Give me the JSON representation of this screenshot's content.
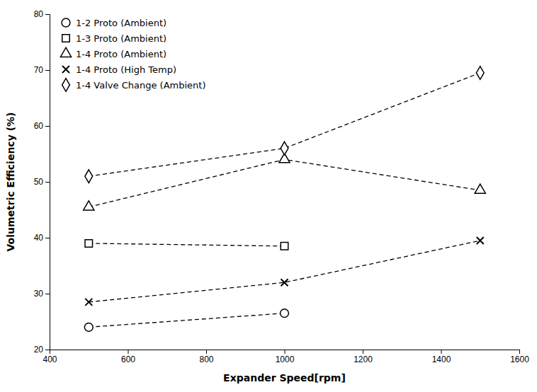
{
  "chart_data": {
    "type": "line",
    "xlabel": "Expander Speed[rpm]",
    "ylabel": "Volumetric Efficiency (%)",
    "color": "black",
    "line_style": "dashed",
    "legend": "upper left",
    "grid": false,
    "xlim": [
      400,
      1600
    ],
    "ylim": [
      20,
      80
    ],
    "xticks": [
      400,
      600,
      800,
      1000,
      1200,
      1400,
      1600
    ],
    "yticks": [
      20,
      30,
      40,
      50,
      60,
      70,
      80
    ],
    "series": [
      {
        "name": "1-2 Proto (Ambient)",
        "marker": "circle",
        "x": [
          500,
          1000
        ],
        "values": [
          24,
          26.5
        ]
      },
      {
        "name": "1-3 Proto (Ambient)",
        "marker": "square",
        "x": [
          500,
          1000
        ],
        "values": [
          39,
          38.5
        ]
      },
      {
        "name": "1-4 Proto (Ambient)",
        "marker": "triangle",
        "x": [
          500,
          1000,
          1500
        ],
        "values": [
          45.5,
          54,
          48.5
        ]
      },
      {
        "name": "1-4 Proto (High Temp)",
        "marker": "x",
        "x": [
          500,
          1000,
          1500
        ],
        "values": [
          28.5,
          32,
          39.5
        ]
      },
      {
        "name": "1-4 Valve Change (Ambient)",
        "marker": "diamond",
        "x": [
          500,
          1000,
          1500
        ],
        "values": [
          51,
          56,
          69.5
        ]
      }
    ]
  }
}
